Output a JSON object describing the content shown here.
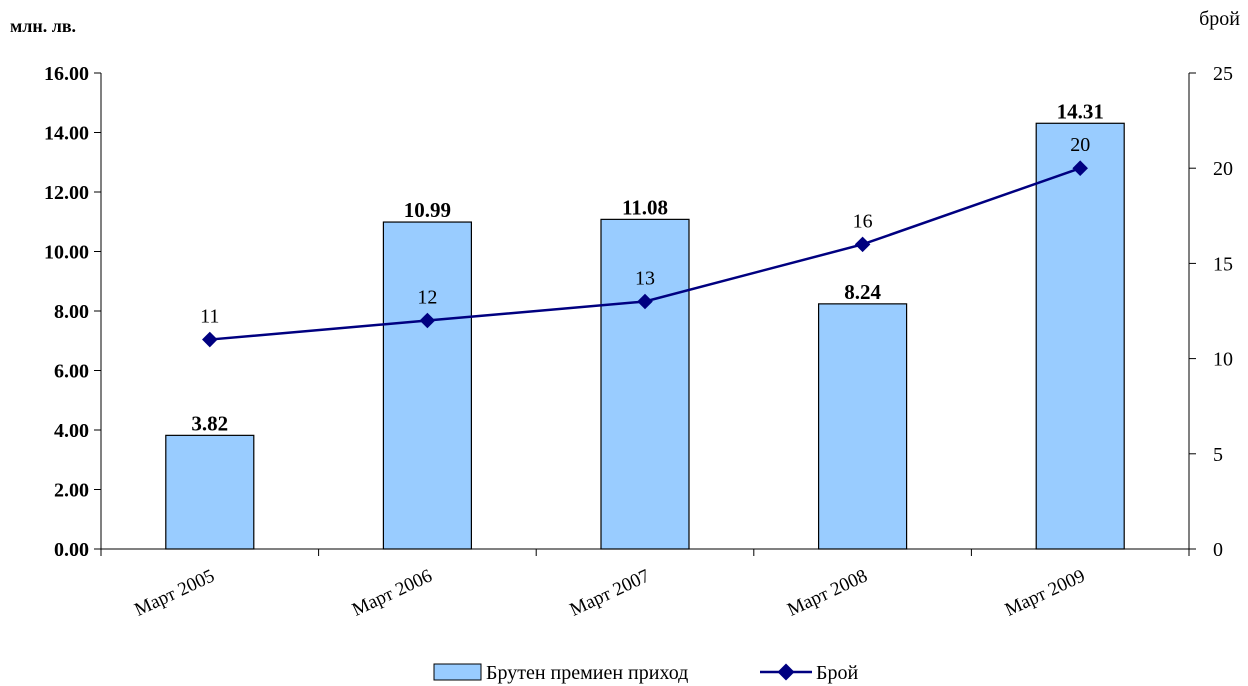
{
  "chart_data": {
    "type": "bar",
    "title": "",
    "ylabel": "млн. лв.",
    "y2label": "брой",
    "categories": [
      "Март 2005",
      "Март 2006",
      "Март 2007",
      "Март 2008",
      "Март 2009"
    ],
    "ylim": [
      0,
      16
    ],
    "y2lim": [
      0,
      25
    ],
    "yticks": [
      "0.00",
      "2.00",
      "4.00",
      "6.00",
      "8.00",
      "10.00",
      "12.00",
      "14.00",
      "16.00"
    ],
    "y2ticks": [
      "0",
      "5",
      "10",
      "15",
      "20",
      "25"
    ],
    "series": [
      {
        "name": "Брутен премиен приход",
        "type": "bar",
        "axis": "left",
        "values": [
          3.82,
          10.99,
          11.08,
          8.24,
          14.31
        ],
        "labels": [
          "3.82",
          "10.99",
          "11.08",
          "8.24",
          "14.31"
        ],
        "color": "#99ccff"
      },
      {
        "name": "Брой",
        "type": "line",
        "axis": "right",
        "values": [
          11,
          12,
          13,
          16,
          20
        ],
        "labels": [
          "11",
          "12",
          "13",
          "16",
          "20"
        ],
        "color": "#000080"
      }
    ],
    "legend": "bottom",
    "grid": false
  }
}
